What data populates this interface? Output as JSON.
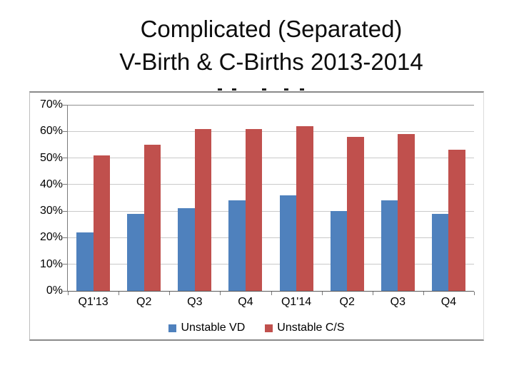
{
  "slide": {
    "title_line1": "Complicated (Separated)",
    "title_line2": "V-Birth & C-Births 2013-2014",
    "clipped_marks_x": [
      305,
      325,
      367,
      398,
      420
    ]
  },
  "chart_data": {
    "type": "bar",
    "title": "Complicated (Separated) V-Birth & C-Births 2013-2014",
    "categories": [
      "Q1'13",
      "Q2",
      "Q3",
      "Q4",
      "Q1'14",
      "Q2",
      "Q3",
      "Q4"
    ],
    "series": [
      {
        "name": "Unstable VD",
        "color": "#4F81BD",
        "values": [
          22,
          29,
          31,
          34,
          36,
          30,
          34,
          29
        ]
      },
      {
        "name": "Unstable C/S",
        "color": "#C0504D",
        "values": [
          51,
          55,
          61,
          61,
          62,
          58,
          59,
          53
        ]
      }
    ],
    "ylim": [
      0,
      70
    ],
    "ytick_step": 10,
    "ytick_labels": [
      "0%",
      "10%",
      "20%",
      "30%",
      "40%",
      "50%",
      "60%",
      "70%"
    ],
    "xlabel": "",
    "ylabel": "",
    "grid": true,
    "legend_position": "bottom"
  }
}
